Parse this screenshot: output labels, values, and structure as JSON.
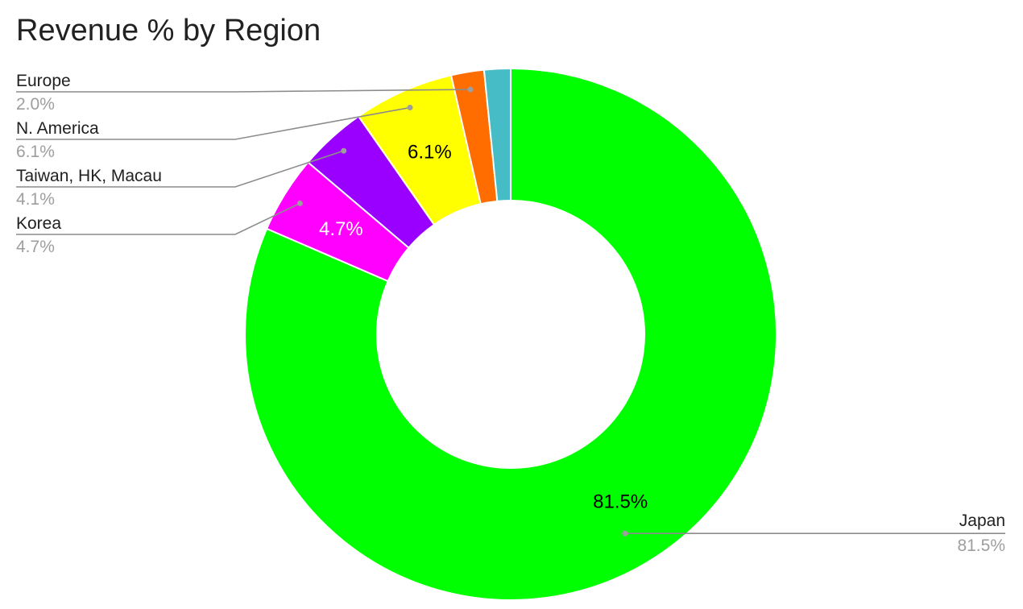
{
  "chart_data": {
    "type": "pie",
    "donut": true,
    "title": "Revenue % by Region",
    "slices": [
      {
        "name": "Japan",
        "value": 81.5,
        "label": "81.5%",
        "color": "#00ff00",
        "show_inner_label": true,
        "inner_label_color": "#000000"
      },
      {
        "name": "Korea",
        "value": 4.7,
        "label": "4.7%",
        "color": "#ff00ff",
        "show_inner_label": true,
        "inner_label_color": "#ffffff"
      },
      {
        "name": "Taiwan, HK, Macau",
        "value": 4.1,
        "label": "4.1%",
        "color": "#9900ff",
        "show_inner_label": false,
        "inner_label_color": "#ffffff"
      },
      {
        "name": "N. America",
        "value": 6.1,
        "label": "6.1%",
        "color": "#ffff00",
        "show_inner_label": true,
        "inner_label_color": "#000000"
      },
      {
        "name": "Europe",
        "value": 2.0,
        "label": "2.0%",
        "color": "#ff6d01",
        "show_inner_label": false,
        "inner_label_color": "#000000"
      },
      {
        "name": "",
        "value": 1.6,
        "label": "",
        "color": "#46bdc6",
        "show_inner_label": false,
        "inner_label_color": "#000000"
      }
    ],
    "legend": "leader-line labels"
  }
}
